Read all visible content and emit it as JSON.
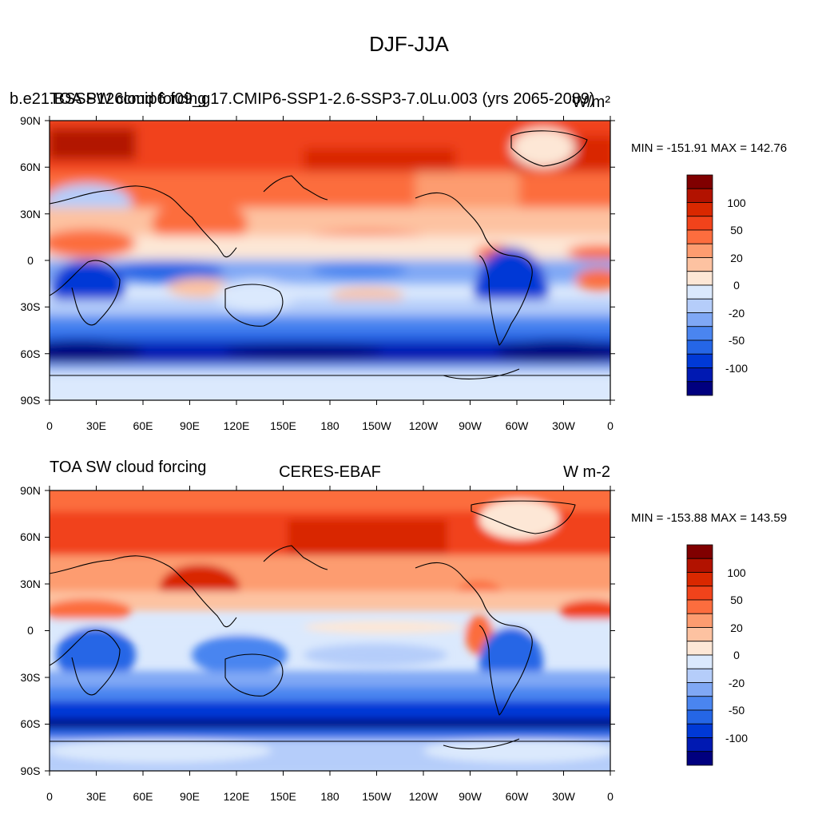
{
  "main_title": "DJF-JJA",
  "colors": [
    "#00007f",
    "#0019b2",
    "#0039d6",
    "#2566e6",
    "#4a85f0",
    "#80a8f5",
    "#b5cdfa",
    "#dbe9fd",
    "#fde7d6",
    "#fdc2a1",
    "#fd9c70",
    "#fc6d3e",
    "#f1431b",
    "#d92800",
    "#b21200",
    "#800000"
  ],
  "colorbar": {
    "labels": [
      "100",
      "50",
      "20",
      "0",
      "-20",
      "-50",
      "-100"
    ]
  },
  "axes": {
    "lon_labels": [
      "0",
      "30E",
      "60E",
      "90E",
      "120E",
      "150E",
      "180",
      "150W",
      "120W",
      "90W",
      "60W",
      "30W",
      "0"
    ],
    "lat_labels": [
      "90N",
      "60N",
      "30N",
      "0",
      "30S",
      "60S",
      "90S"
    ]
  },
  "panels": [
    {
      "left_title": "b.e21.BSSP126cmip6.f09_g17.CMIP6-SSP1-2.6-SSP3-7.0Lu.003 (yrs 2065-2089)",
      "left_title_overlap": "TOA SW cloud forcing",
      "center_title": "",
      "right_title": "W/m²",
      "stats": "MIN = -151.91 MAX = 142.76"
    },
    {
      "left_title": "TOA SW cloud forcing",
      "center_title": "CERES-EBAF",
      "right_title": "W m-2",
      "stats": "MIN = -153.88 MAX = 143.59"
    }
  ]
}
